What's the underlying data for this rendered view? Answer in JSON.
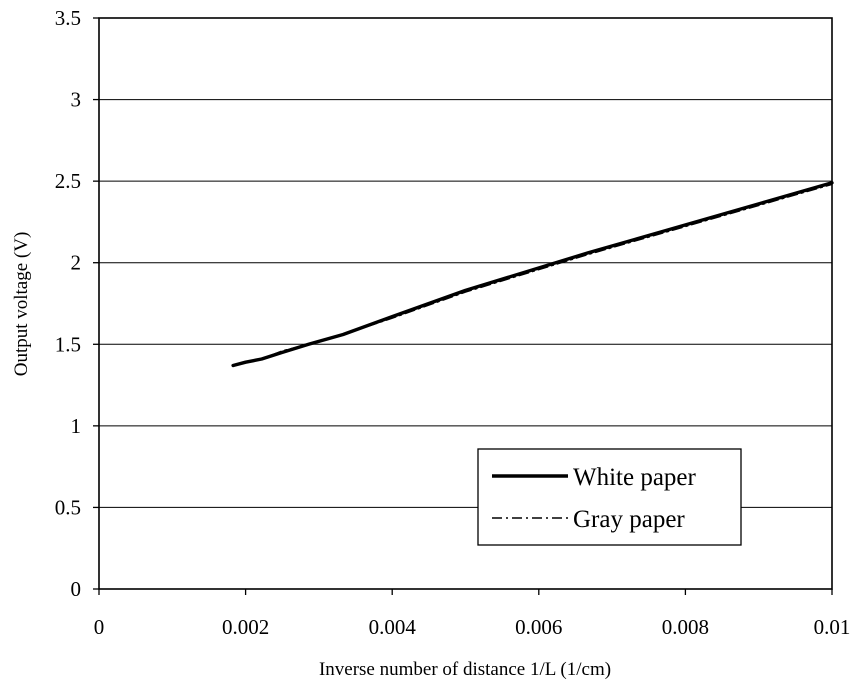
{
  "chart_data": {
    "type": "line",
    "xlabel": "Inverse number of distance 1/L (1/cm)",
    "ylabel": "Output voltage (V)",
    "xlim": [
      0,
      0.01
    ],
    "ylim": [
      0,
      3.5
    ],
    "x_ticks": [
      "0",
      "0.002",
      "0.004",
      "0.006",
      "0.008",
      "0.01"
    ],
    "y_ticks": [
      "0",
      "0.5",
      "1",
      "1.5",
      "2",
      "2.5",
      "3",
      "3.5"
    ],
    "grid": "horizontal",
    "legend_position": "lower-right",
    "series": [
      {
        "name": "White paper",
        "style": "solid",
        "color": "#000000",
        "x": [
          0.00183,
          0.002,
          0.00222,
          0.0025,
          0.00286,
          0.00333,
          0.004,
          0.005,
          0.00667,
          0.01
        ],
        "y": [
          1.37,
          1.39,
          1.41,
          1.45,
          1.5,
          1.56,
          1.67,
          1.83,
          2.06,
          2.49
        ]
      },
      {
        "name": "Gray paper",
        "style": "dash-dot",
        "color": "#000000",
        "x": [
          0.00183,
          0.002,
          0.00222,
          0.0025,
          0.00286,
          0.00333,
          0.004,
          0.005,
          0.00667,
          0.01
        ],
        "y": [
          1.37,
          1.39,
          1.41,
          1.46,
          1.5,
          1.56,
          1.66,
          1.82,
          2.05,
          2.48
        ]
      }
    ]
  }
}
